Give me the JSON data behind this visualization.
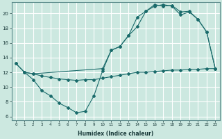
{
  "xlabel": "Humidex (Indice chaleur)",
  "bg_color": "#cce8e0",
  "grid_color": "#ffffff",
  "line_color": "#1a6b6b",
  "xlim": [
    -0.5,
    23.5
  ],
  "ylim": [
    5.5,
    21.5
  ],
  "xticks": [
    0,
    1,
    2,
    3,
    4,
    5,
    6,
    7,
    8,
    9,
    10,
    11,
    12,
    13,
    14,
    15,
    16,
    17,
    18,
    19,
    20,
    21,
    22,
    23
  ],
  "yticks": [
    6,
    8,
    10,
    12,
    14,
    16,
    18,
    20
  ],
  "line1_x": [
    0,
    1,
    2,
    3,
    4,
    5,
    6,
    7,
    8,
    9,
    10,
    11,
    12,
    13,
    14,
    15,
    16,
    17,
    18,
    19,
    20,
    21,
    22,
    23
  ],
  "line1_y": [
    13.2,
    12.0,
    11.0,
    9.5,
    8.8,
    7.8,
    7.2,
    6.5,
    6.7,
    8.8,
    12.2,
    15.0,
    15.5,
    17.0,
    19.5,
    20.3,
    21.0,
    21.2,
    21.0,
    19.8,
    20.2,
    19.2,
    17.5,
    12.5
  ],
  "line2_x": [
    0,
    1,
    2,
    10,
    11,
    12,
    13,
    14,
    15,
    16,
    17,
    18,
    19,
    20,
    21,
    22,
    23
  ],
  "line2_y": [
    13.2,
    12.0,
    11.8,
    12.5,
    15.0,
    15.5,
    17.0,
    18.2,
    20.3,
    21.2,
    21.0,
    21.1,
    20.2,
    20.3,
    19.2,
    17.5,
    12.5
  ],
  "line3_x": [
    1,
    2,
    3,
    4,
    5,
    6,
    7,
    8,
    9,
    10,
    11,
    12,
    13,
    14,
    15,
    16,
    17,
    18,
    19,
    20,
    21,
    22,
    23
  ],
  "line3_y": [
    12.0,
    11.8,
    11.5,
    11.3,
    11.1,
    11.0,
    10.9,
    11.0,
    11.0,
    11.2,
    11.4,
    11.6,
    11.8,
    12.0,
    12.0,
    12.1,
    12.2,
    12.3,
    12.3,
    12.4,
    12.4,
    12.5,
    12.5
  ]
}
